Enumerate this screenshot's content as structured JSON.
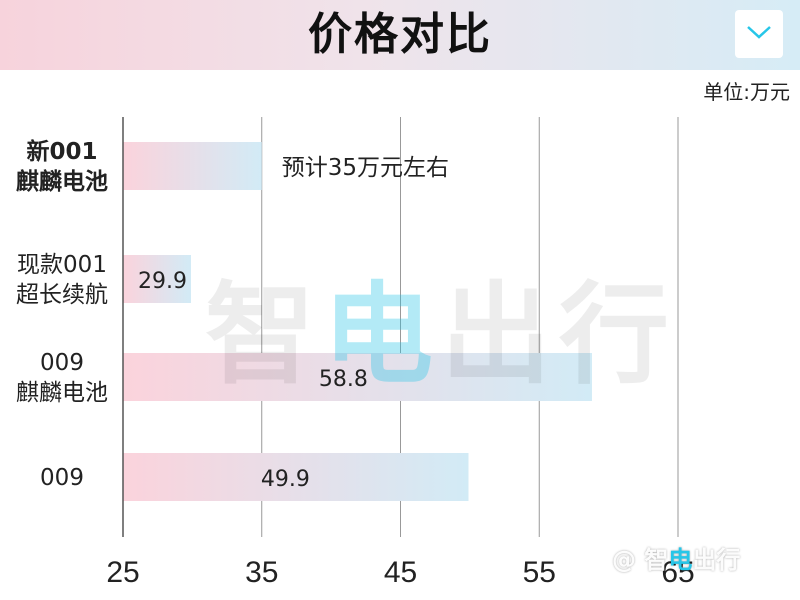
{
  "header": {
    "title": "价格对比"
  },
  "unit_label": "单位:万元",
  "colors": {
    "bar_start": "#fbd3dc",
    "bar_end": "#d2ebf6",
    "header_start": "#f7d3dc",
    "header_end": "#d6ecf6",
    "grid": "#999999",
    "accent": "#27c6e8"
  },
  "dropdown_icon": "chevron-down-icon",
  "watermark": {
    "big": "智电出行",
    "small": "@ 智电出行",
    "big_pre": "智",
    "big_post": "出行",
    "small_pre": "@ 智",
    "small_post": "出行",
    "bolt": "电"
  },
  "chart_data": {
    "type": "bar",
    "orientation": "horizontal",
    "title": "价格对比",
    "categories": [
      [
        "新001",
        "麒麟电池"
      ],
      [
        "现款001",
        "超长续航"
      ],
      [
        "009",
        "麒麟电池"
      ],
      [
        "009"
      ]
    ],
    "category_bold": [
      true,
      false,
      false,
      false
    ],
    "values": [
      35,
      29.9,
      58.8,
      49.9
    ],
    "data_labels": [
      "预计35万元左右",
      "29.9",
      "58.8",
      "49.9"
    ],
    "xlim": [
      25,
      65
    ],
    "xticks": [
      "25",
      "35",
      "45",
      "55",
      "65"
    ],
    "grid": true
  }
}
